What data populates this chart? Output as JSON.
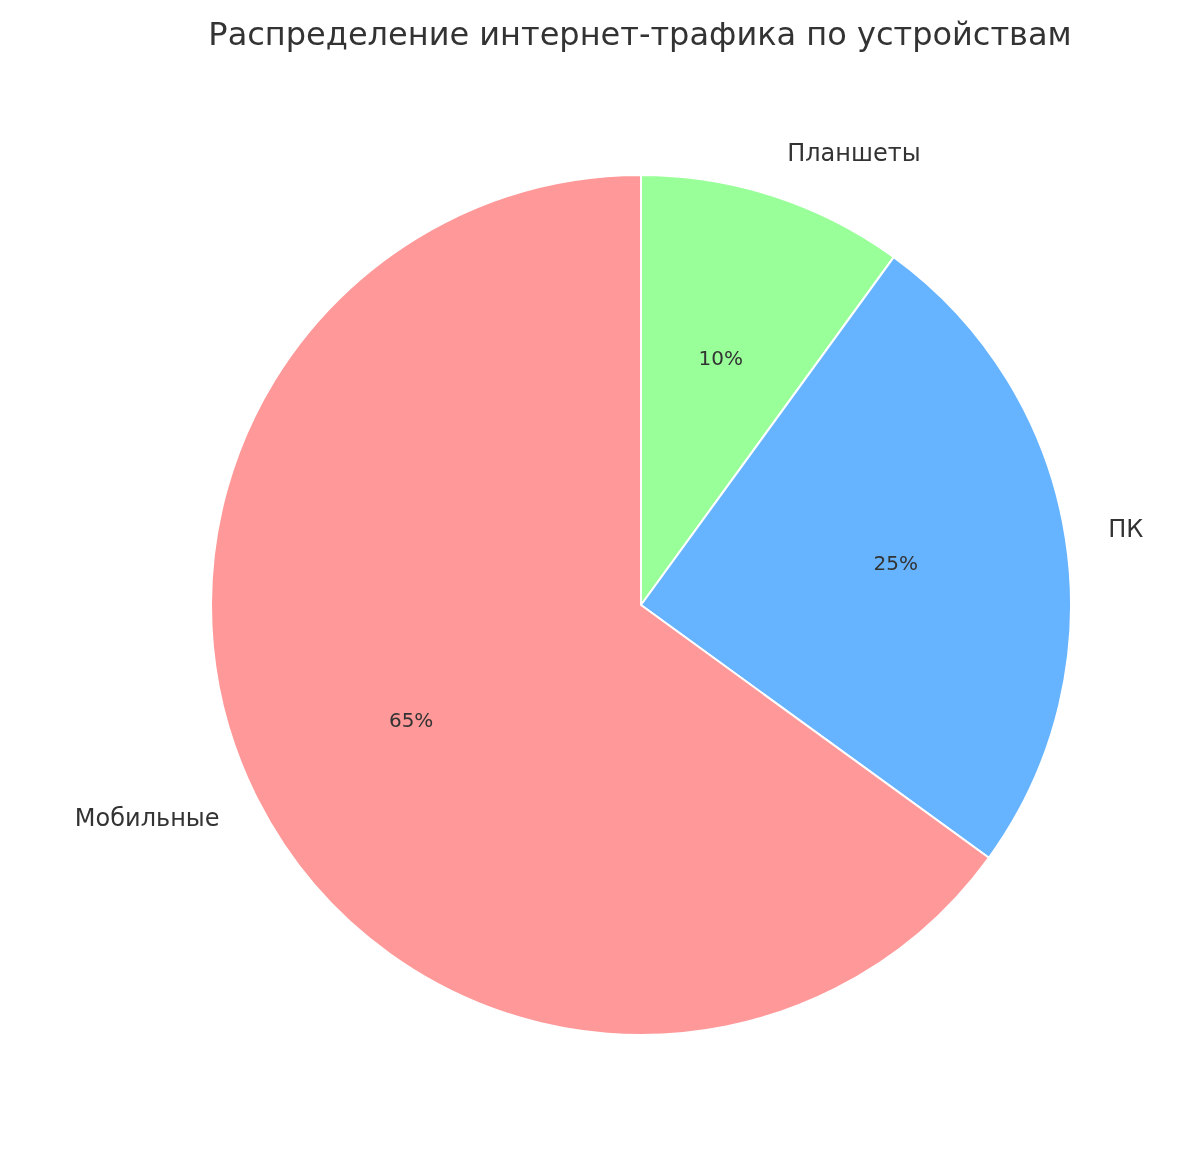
{
  "chart_data": {
    "type": "pie",
    "title": "Распределение интернет-трафика по устройствам",
    "categories": [
      "Планшеты",
      "ПК",
      "Мобильные"
    ],
    "values": [
      10,
      25,
      65
    ],
    "colors": [
      "#99ff99",
      "#66b3ff",
      "#ff9999"
    ],
    "value_labels": [
      "10%",
      "25%",
      "65%"
    ],
    "legend": false
  }
}
